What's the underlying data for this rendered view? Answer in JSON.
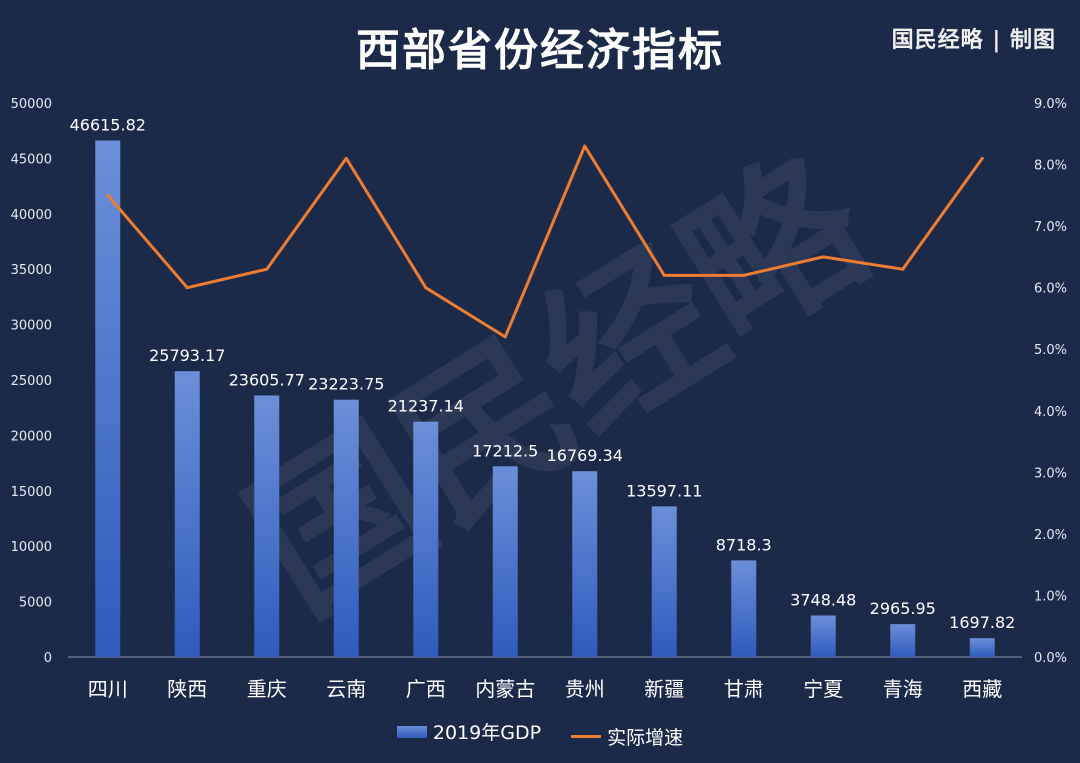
{
  "header": {
    "title": "西部省份经济指标",
    "brand": "国民经略 | 制图"
  },
  "watermark": "国民经略",
  "legend": {
    "bar_label": "2019年GDP",
    "line_label": "实际增速"
  },
  "colors": {
    "background": "#1c2a4a",
    "bar_top": "#6b8fd8",
    "bar_bottom": "#2f5bbd",
    "line": "#ed7d31",
    "text": "#ffffff"
  },
  "chart_data": {
    "type": "bar",
    "categories": [
      "四川",
      "陕西",
      "重庆",
      "云南",
      "广西",
      "内蒙古",
      "贵州",
      "新疆",
      "甘肃",
      "宁夏",
      "青海",
      "西藏"
    ],
    "series": [
      {
        "name": "2019年GDP",
        "type": "bar",
        "axis": "left",
        "values": [
          46615.82,
          25793.17,
          23605.77,
          23223.75,
          21237.14,
          17212.5,
          16769.34,
          13597.11,
          8718.3,
          3748.48,
          2965.95,
          1697.82
        ],
        "labels": [
          "46615.82",
          "25793.17",
          "23605.77",
          "23223.75",
          "21237.14",
          "17212.5",
          "16769.34",
          "13597.11",
          "8718.3",
          "3748.48",
          "2965.95",
          "1697.82"
        ]
      },
      {
        "name": "实际增速",
        "type": "line",
        "axis": "right",
        "values": [
          7.5,
          6.0,
          6.3,
          8.1,
          6.0,
          5.2,
          8.3,
          6.2,
          6.2,
          6.5,
          6.3,
          8.1
        ]
      }
    ],
    "y_left": {
      "ylim": [
        0,
        50000
      ],
      "ticks": [
        0,
        5000,
        10000,
        15000,
        20000,
        25000,
        30000,
        35000,
        40000,
        45000,
        50000
      ],
      "tick_labels": [
        "0",
        "5000",
        "10000",
        "15000",
        "20000",
        "25000",
        "30000",
        "35000",
        "40000",
        "45000",
        "50000"
      ]
    },
    "y_right": {
      "ylim": [
        0,
        9
      ],
      "ticks": [
        0,
        1,
        2,
        3,
        4,
        5,
        6,
        7,
        8,
        9
      ],
      "tick_labels": [
        "0.0%",
        "1.0%",
        "2.0%",
        "3.0%",
        "4.0%",
        "5.0%",
        "6.0%",
        "7.0%",
        "8.0%",
        "9.0%"
      ]
    },
    "grid": false,
    "legend_position": "bottom"
  }
}
